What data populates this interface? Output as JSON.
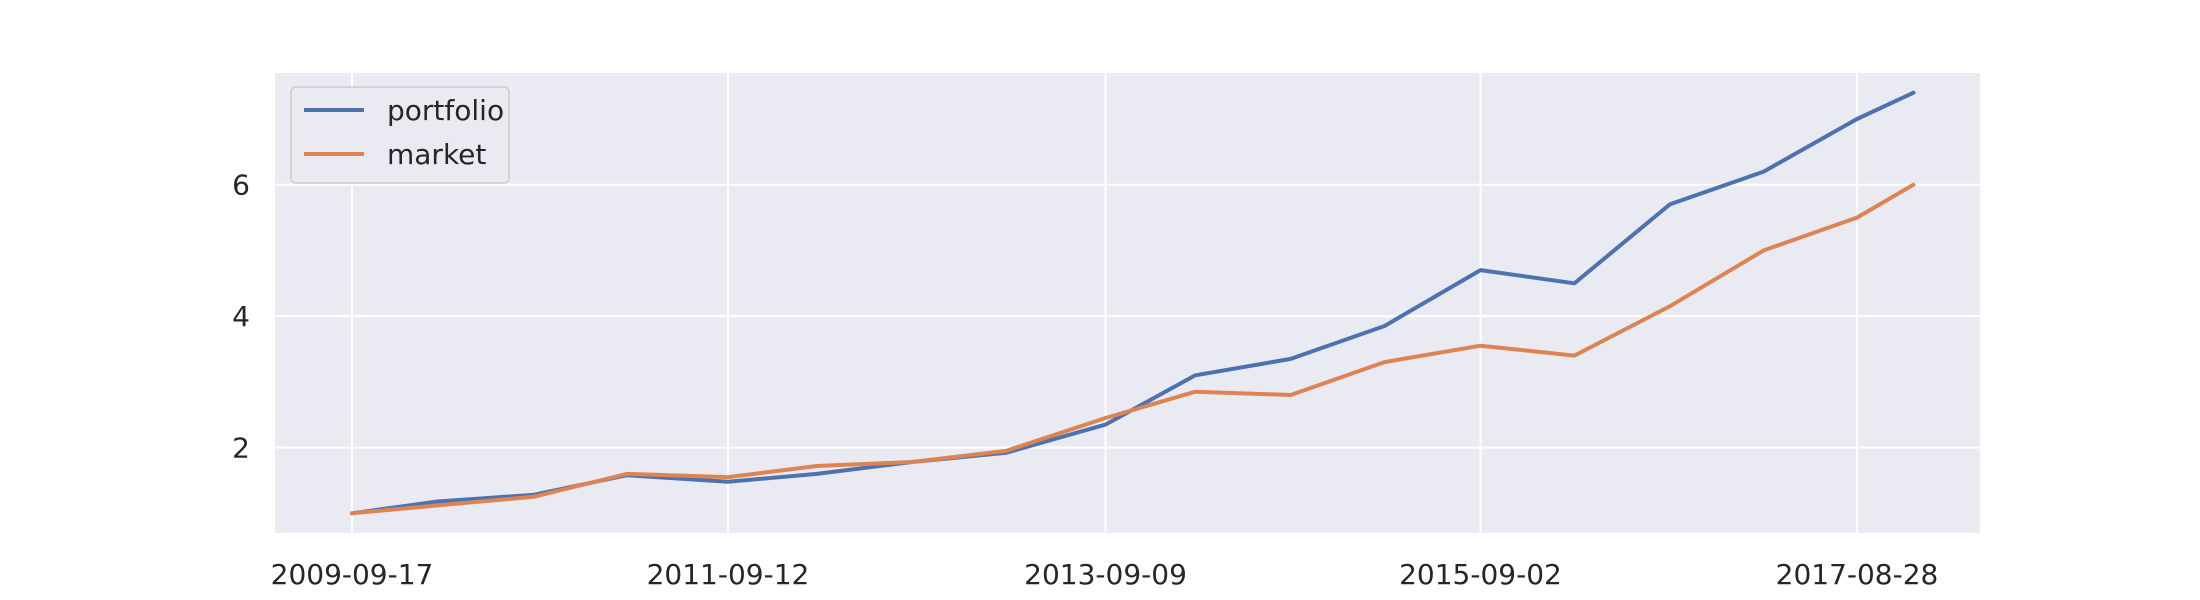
{
  "chart_data": {
    "type": "line",
    "title": "",
    "xlabel": "",
    "ylabel": "",
    "x": [
      "2009-09-17",
      "2010-03-01",
      "2010-09-01",
      "2011-03-01",
      "2011-09-12",
      "2012-03-01",
      "2012-09-01",
      "2013-03-01",
      "2013-09-09",
      "2014-03-01",
      "2014-09-01",
      "2015-03-01",
      "2015-09-02",
      "2016-03-01",
      "2016-09-01",
      "2017-03-01",
      "2017-08-28",
      "2017-12-15"
    ],
    "xticks": [
      "2009-09-17",
      "2011-09-12",
      "2013-09-09",
      "2015-09-02",
      "2017-08-28"
    ],
    "yticks": [
      2,
      4,
      6
    ],
    "ylim": [
      0.7,
      7.7
    ],
    "grid": true,
    "legend_position": "top-left",
    "series": [
      {
        "name": "portfolio",
        "color": "#4c72b0",
        "values": [
          1.0,
          1.18,
          1.28,
          1.58,
          1.48,
          1.6,
          1.78,
          1.92,
          2.35,
          3.1,
          3.35,
          3.85,
          4.7,
          4.5,
          5.7,
          6.2,
          7.0,
          7.4
        ]
      },
      {
        "name": "market",
        "color": "#dd8452",
        "values": [
          1.0,
          1.12,
          1.25,
          1.6,
          1.55,
          1.72,
          1.78,
          1.95,
          2.45,
          2.85,
          2.8,
          3.3,
          3.55,
          3.4,
          4.15,
          5.0,
          5.5,
          6.0
        ]
      }
    ]
  }
}
